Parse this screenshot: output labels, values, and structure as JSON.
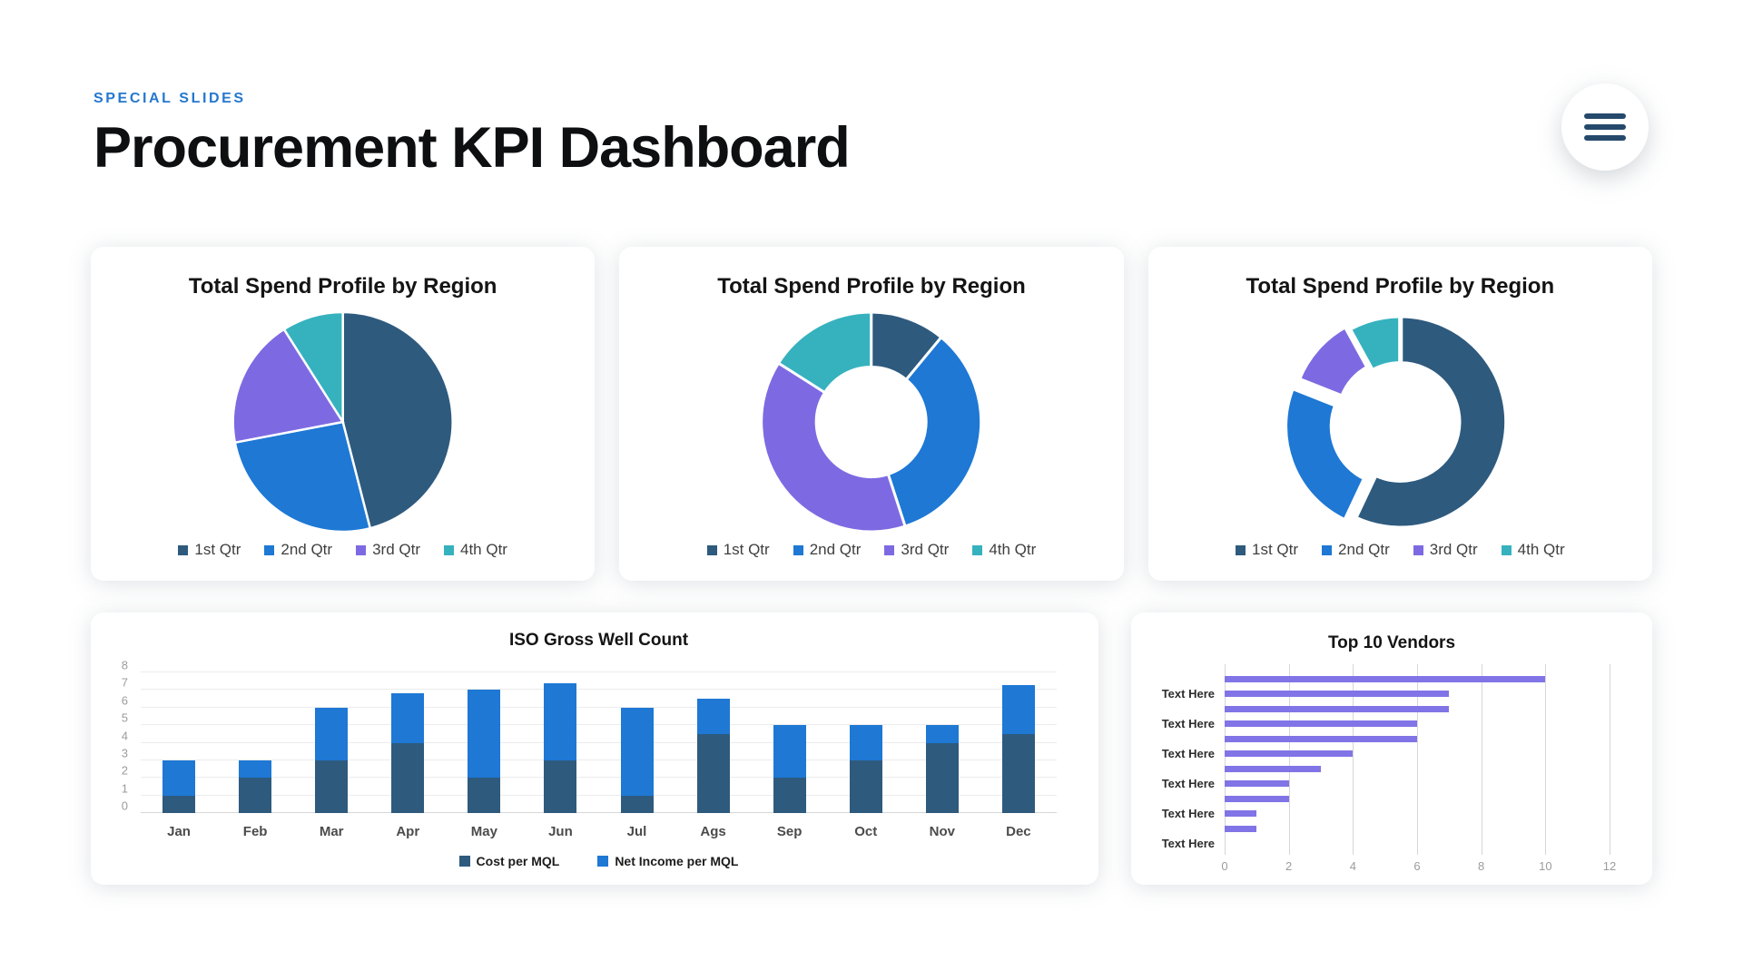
{
  "header": {
    "eyebrow": "SPECIAL SLIDES",
    "title": "Procurement KPI Dashboard"
  },
  "menu": {
    "icon": "hamburger-icon"
  },
  "colors": {
    "accent_blue": "#2478CE",
    "navy": "#2E5A7E",
    "blue": "#1E78D4",
    "purple": "#7D6AE2",
    "teal": "#36B2BE",
    "vendor_purple": "#8174E6"
  },
  "chart_data": [
    {
      "type": "pie",
      "title": "Total Spend Profile by Region",
      "labels": [
        "1st Qtr",
        "2nd Qtr",
        "3rd Qtr",
        "4th Qtr"
      ],
      "values": [
        46,
        26,
        19,
        9
      ],
      "unit": "percent",
      "colors": [
        "#2E5A7E",
        "#1E78D4",
        "#7D6AE2",
        "#36B2BE"
      ],
      "inner_radius_ratio": 0,
      "slice_gap": 2.5,
      "legend_position": "bottom"
    },
    {
      "type": "pie",
      "title": "Total Spend Profile by Region",
      "labels": [
        "1st Qtr",
        "2nd Qtr",
        "3rd Qtr",
        "4th Qtr"
      ],
      "values": [
        11,
        34,
        39,
        16
      ],
      "unit": "percent",
      "colors": [
        "#2E5A7E",
        "#1E78D4",
        "#7D6AE2",
        "#36B2BE"
      ],
      "inner_radius_ratio": 0.5,
      "slice_gap": 3,
      "legend_position": "bottom"
    },
    {
      "type": "pie",
      "title": "Total Spend Profile by Region",
      "labels": [
        "1st Qtr",
        "2nd Qtr",
        "3rd Qtr",
        "4th Qtr"
      ],
      "values": [
        57,
        24,
        11,
        8
      ],
      "unit": "percent",
      "colors": [
        "#2E5A7E",
        "#1E78D4",
        "#7D6AE2",
        "#36B2BE"
      ],
      "inner_radius_ratio": 0.55,
      "slice_gap": 5,
      "explode_offsets": [
        0,
        13,
        7,
        0
      ],
      "legend_position": "bottom"
    },
    {
      "type": "bar",
      "variant": "stacked-vertical",
      "title": "ISO Gross Well Count",
      "categories": [
        "Jan",
        "Feb",
        "Mar",
        "Apr",
        "May",
        "Jun",
        "Jul",
        "Ags",
        "Sep",
        "Oct",
        "Nov",
        "Dec"
      ],
      "series": [
        {
          "name": "Cost per MQL",
          "color": "#2E5A7E",
          "values": [
            1,
            2,
            3,
            4,
            2,
            3,
            1,
            4.5,
            2,
            3,
            4,
            4.5
          ]
        },
        {
          "name": "Net Income per MQL",
          "color": "#1E78D4",
          "values": [
            2,
            1,
            3,
            2.8,
            5,
            4.4,
            5,
            2,
            3,
            2,
            1,
            2.8
          ]
        }
      ],
      "ylim": [
        0,
        8
      ],
      "yticks": [
        0,
        1,
        2,
        3,
        4,
        5,
        6,
        7,
        8
      ],
      "grid": "horizontal",
      "legend_position": "bottom"
    },
    {
      "type": "bar",
      "variant": "horizontal",
      "title": "Top 10 Vendors",
      "row_label": "Text Here",
      "labeled_rows": [
        1,
        3,
        5,
        7,
        9,
        11
      ],
      "values": [
        10,
        7,
        7,
        6,
        6,
        4,
        3,
        2,
        2,
        1,
        1,
        0
      ],
      "color": "#8174E6",
      "xlim": [
        0,
        12
      ],
      "xticks": [
        0,
        2,
        4,
        6,
        8,
        10,
        12
      ],
      "grid": "vertical",
      "legend_position": "none"
    }
  ]
}
